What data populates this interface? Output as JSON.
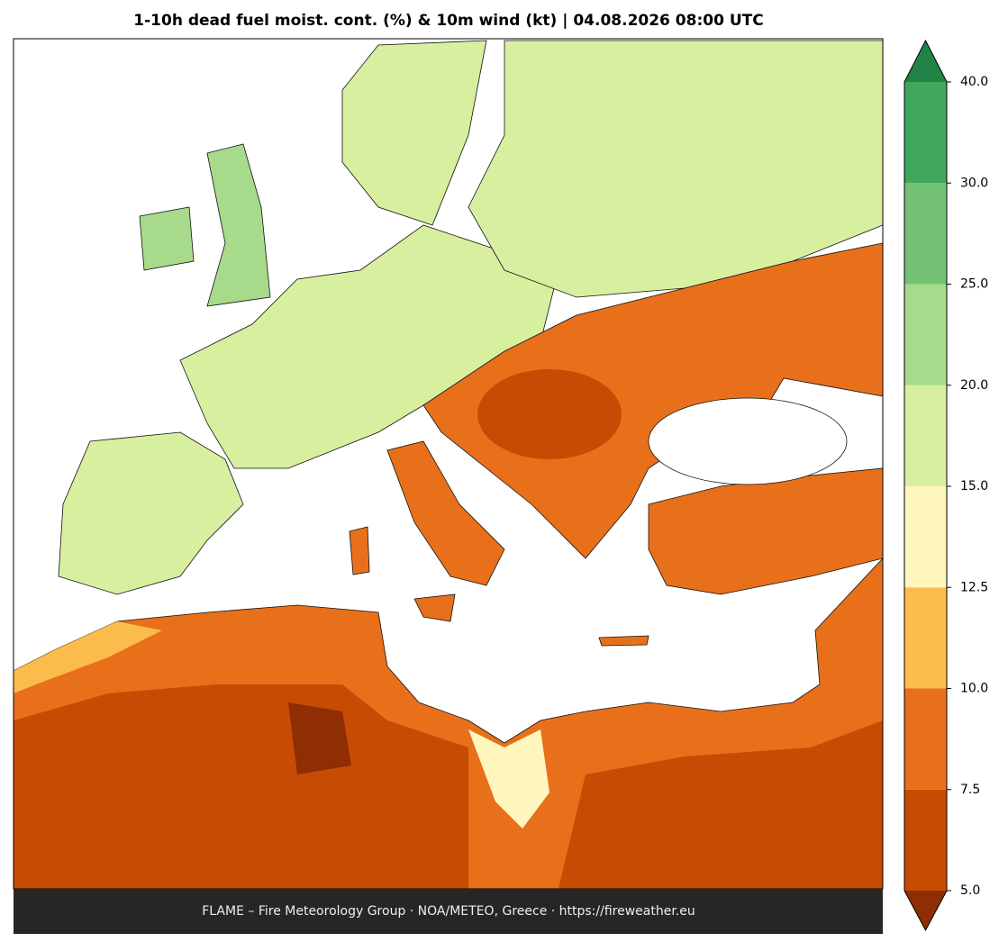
{
  "title": "1-10h dead fuel moist. cont. (%) & 10m wind (kt)  |  04.08.2026 08:00 UTC",
  "footer": "FLAME – Fire Meteorology Group · NOA/METEO, Greece · https://fireweather.eu",
  "colorbar": {
    "ticks": [
      {
        "value": 5,
        "label": "5.0"
      },
      7.5,
      {
        "value": 10,
        "label": "10.0"
      },
      12.5,
      {
        "value": 15,
        "label": "15.0"
      },
      {
        "value": 20,
        "label": "20.0"
      },
      {
        "value": 25,
        "label": "25.0"
      },
      {
        "value": 30,
        "label": "30.0"
      },
      {
        "value": 40,
        "label": "40.0"
      }
    ],
    "colors": [
      "#8f2d05",
      "#c84b04",
      "#e8701a",
      "#fcbc4c",
      "#fff6bd",
      "#d8efa0",
      "#a7da8a",
      "#73c173",
      "#3fa85a",
      "#218446"
    ]
  }
}
